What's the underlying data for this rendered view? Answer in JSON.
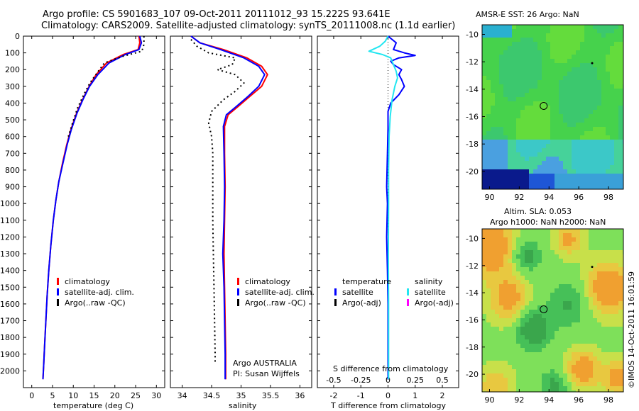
{
  "header": {
    "title_line1": "Argo profile: CS 5901683_107 09-Oct-2011 20111012_93 15.222S 93.641E",
    "title_line2": "Climatology: CARS2009. Satellite-adjusted climatology: synTS_20111008.nc (1.1d earlier)"
  },
  "legend_profile": {
    "climatology": "climatology",
    "satellite": "satellite-adj. clim.",
    "argo": "Argo(..raw -QC)"
  },
  "legend_diff": {
    "temperature_heading": "temperature",
    "salinity_heading": "salinity",
    "satellite": "satellite",
    "argo_adj": "Argo(-adj)"
  },
  "annotations": {
    "institution": "Argo AUSTRALIA",
    "pi": "PI: Susan Wijffels",
    "s_diff_label": "S difference from climatology",
    "credit": "©IMOS 14-Oct-2011 16:01:59"
  },
  "maps": {
    "sst_title": "AMSR-E SST: 26  Argo: NaN",
    "sla_title_line1": "Altim. SLA: 0.053",
    "sla_title_line2": "Argo h1000: NaN h2000: NaN"
  },
  "colors": {
    "climatology": "#ff0000",
    "satellite": "#0000ff",
    "argo": "#000000",
    "salinity_satellite": "#22e6f0",
    "salinity_argo": "#ff00ff"
  },
  "chart_data": [
    {
      "type": "line",
      "xlabel": "temperature (deg C)",
      "ylabel": "",
      "xlim": [
        -2,
        32
      ],
      "ylim": [
        2100,
        0
      ],
      "xticks": [
        0,
        5,
        10,
        15,
        20,
        25,
        30
      ],
      "yticks": [
        0,
        100,
        200,
        300,
        400,
        500,
        600,
        700,
        800,
        900,
        1000,
        1100,
        1200,
        1300,
        1400,
        1500,
        1600,
        1700,
        1800,
        1900,
        2000
      ],
      "series": [
        {
          "name": "climatology",
          "points": [
            [
              25.8,
              0
            ],
            [
              26,
              40
            ],
            [
              25.6,
              80
            ],
            [
              22,
              110
            ],
            [
              18,
              160
            ],
            [
              15.5,
              230
            ],
            [
              13.8,
              300
            ],
            [
              12.2,
              380
            ],
            [
              10.8,
              460
            ],
            [
              9.4,
              560
            ],
            [
              8.4,
              650
            ],
            [
              7.4,
              760
            ],
            [
              6.5,
              870
            ],
            [
              5.8,
              980
            ],
            [
              5.2,
              1100
            ],
            [
              4.6,
              1250
            ],
            [
              4.1,
              1400
            ],
            [
              3.7,
              1550
            ],
            [
              3.4,
              1700
            ],
            [
              3.1,
              1850
            ],
            [
              2.9,
              1950
            ],
            [
              2.7,
              2050
            ]
          ]
        },
        {
          "name": "satellite-adj. clim.",
          "points": [
            [
              26,
              0
            ],
            [
              26.4,
              40
            ],
            [
              25.8,
              80
            ],
            [
              22.5,
              110
            ],
            [
              18.6,
              160
            ],
            [
              15.9,
              230
            ],
            [
              13.9,
              300
            ],
            [
              12.3,
              380
            ],
            [
              10.9,
              460
            ],
            [
              9.5,
              560
            ],
            [
              8.5,
              650
            ],
            [
              7.5,
              760
            ],
            [
              6.5,
              870
            ],
            [
              5.8,
              980
            ],
            [
              5.2,
              1100
            ],
            [
              4.6,
              1250
            ],
            [
              4.1,
              1400
            ],
            [
              3.7,
              1550
            ],
            [
              3.4,
              1700
            ],
            [
              3.1,
              1850
            ],
            [
              2.9,
              1950
            ],
            [
              2.7,
              2050
            ]
          ]
        },
        {
          "name": "Argo(..raw -QC)",
          "points": [
            [
              27,
              0
            ],
            [
              27,
              50
            ],
            [
              26.5,
              90
            ],
            [
              22,
              120
            ],
            [
              17.5,
              160
            ],
            [
              16,
              210
            ],
            [
              14,
              280
            ],
            [
              12.5,
              350
            ],
            [
              11,
              430
            ],
            [
              9.8,
              520
            ],
            [
              8.8,
              600
            ]
          ]
        }
      ]
    },
    {
      "type": "line",
      "xlabel": "salinity",
      "ylabel": "",
      "xlim": [
        33.8,
        36.2
      ],
      "ylim": [
        2100,
        0
      ],
      "xticks": [
        34,
        34.5,
        35,
        35.5,
        36
      ],
      "series": [
        {
          "name": "climatology",
          "points": [
            [
              34.15,
              0
            ],
            [
              34.3,
              40
            ],
            [
              34.7,
              80
            ],
            [
              35.1,
              130
            ],
            [
              35.35,
              180
            ],
            [
              35.45,
              230
            ],
            [
              35.35,
              300
            ],
            [
              35.15,
              360
            ],
            [
              34.95,
              420
            ],
            [
              34.78,
              470
            ],
            [
              34.72,
              540
            ],
            [
              34.72,
              700
            ],
            [
              34.73,
              900
            ],
            [
              34.72,
              1100
            ],
            [
              34.71,
              1300
            ],
            [
              34.72,
              1500
            ],
            [
              34.73,
              1700
            ],
            [
              34.74,
              1900
            ],
            [
              34.74,
              2050
            ]
          ]
        },
        {
          "name": "satellite-adj. clim.",
          "points": [
            [
              34.15,
              0
            ],
            [
              34.3,
              40
            ],
            [
              34.65,
              80
            ],
            [
              35.05,
              130
            ],
            [
              35.3,
              180
            ],
            [
              35.4,
              230
            ],
            [
              35.3,
              300
            ],
            [
              35.12,
              360
            ],
            [
              34.92,
              420
            ],
            [
              34.75,
              470
            ],
            [
              34.7,
              540
            ],
            [
              34.71,
              700
            ],
            [
              34.72,
              900
            ],
            [
              34.71,
              1100
            ],
            [
              34.69,
              1300
            ],
            [
              34.71,
              1500
            ],
            [
              34.72,
              1700
            ],
            [
              34.73,
              1900
            ],
            [
              34.73,
              2050
            ]
          ]
        },
        {
          "name": "Argo(..raw -QC)",
          "points": [
            [
              34.15,
              20
            ],
            [
              34.25,
              60
            ],
            [
              34.45,
              100
            ],
            [
              34.9,
              130
            ],
            [
              34.85,
              170
            ],
            [
              34.6,
              200
            ],
            [
              34.9,
              230
            ],
            [
              35.05,
              280
            ],
            [
              34.9,
              330
            ],
            [
              34.7,
              380
            ],
            [
              34.5,
              450
            ],
            [
              34.45,
              520
            ],
            [
              34.5,
              600
            ],
            [
              34.52,
              700
            ],
            [
              34.52,
              900
            ],
            [
              34.52,
              1100
            ],
            [
              34.53,
              1300
            ],
            [
              34.54,
              1500
            ],
            [
              34.55,
              1700
            ],
            [
              34.56,
              1900
            ],
            [
              34.56,
              1960
            ]
          ]
        }
      ]
    },
    {
      "type": "line",
      "xlabel": "T difference from climatology",
      "ylabel": "",
      "xlim": [
        -2.6,
        2.6
      ],
      "ylim": [
        2100,
        0
      ],
      "xticks": [
        -2,
        -1,
        0,
        1,
        2
      ],
      "top_xticks": [
        "-0.5",
        "-0.25",
        "0",
        "0.25",
        "0.5"
      ],
      "series": [
        {
          "name": "temperature satellite",
          "points": [
            [
              0,
              0
            ],
            [
              0.3,
              40
            ],
            [
              0.2,
              80
            ],
            [
              0.6,
              100
            ],
            [
              1.0,
              115
            ],
            [
              0.4,
              130
            ],
            [
              0.1,
              150
            ],
            [
              0.2,
              170
            ],
            [
              0.5,
              200
            ],
            [
              0.4,
              230
            ],
            [
              0.5,
              260
            ],
            [
              0.6,
              300
            ],
            [
              0.4,
              350
            ],
            [
              0.1,
              400
            ],
            [
              0,
              450
            ],
            [
              0,
              550
            ],
            [
              -0.02,
              700
            ],
            [
              -0.05,
              900
            ],
            [
              -0.02,
              1000
            ],
            [
              -0.05,
              1200
            ],
            [
              -0.02,
              1400
            ],
            [
              0,
              1600
            ],
            [
              0,
              1800
            ],
            [
              0,
              2050
            ]
          ]
        },
        {
          "name": "salinity satellite",
          "points": [
            [
              0,
              0
            ],
            [
              -0.1,
              30
            ],
            [
              -0.3,
              60
            ],
            [
              -0.7,
              90
            ],
            [
              -0.2,
              110
            ],
            [
              0.1,
              130
            ],
            [
              0.2,
              170
            ],
            [
              0.3,
              210
            ],
            [
              0.35,
              250
            ],
            [
              0.25,
              300
            ],
            [
              0.15,
              380
            ],
            [
              0.08,
              480
            ],
            [
              0.04,
              600
            ],
            [
              0.02,
              800
            ],
            [
              0.02,
              1000
            ],
            [
              0.01,
              1300
            ],
            [
              0.02,
              1600
            ],
            [
              0.02,
              1900
            ],
            [
              0.02,
              2050
            ]
          ]
        }
      ]
    }
  ],
  "map_axes": {
    "x_ticks": [
      "90",
      "92",
      "94",
      "96",
      "98"
    ],
    "y_ticks": [
      "-10",
      "-12",
      "-14",
      "-16",
      "-18",
      "-20"
    ],
    "profile_marker": {
      "lon": 93.64,
      "lat": -15.22
    }
  }
}
